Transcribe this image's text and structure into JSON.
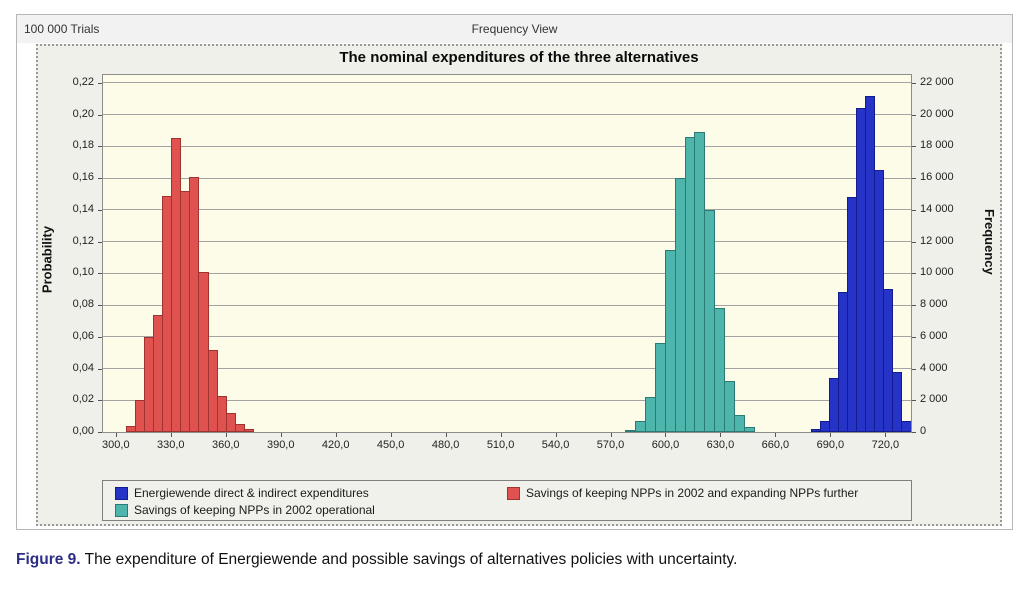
{
  "header": {
    "trials": "100 000 Trials",
    "view": "Frequency View"
  },
  "chart_data": {
    "type": "bar",
    "title": "The nominal expenditures of the three alternatives",
    "ylabel_left": "Probability",
    "ylabel_right": "Frequency",
    "x_domain": [
      293,
      734
    ],
    "y_domain_probability": [
      0,
      0.225
    ],
    "y_domain_frequency": [
      0,
      22500
    ],
    "grid": true,
    "legend_position": "bottom",
    "x_tick_values": [
      300,
      330,
      360,
      390,
      420,
      450,
      480,
      510,
      540,
      570,
      600,
      630,
      660,
      690,
      720
    ],
    "x_tick_labels": [
      "300,0",
      "330,0",
      "360,0",
      "390,0",
      "420,0",
      "450,0",
      "480,0",
      "510,0",
      "540,0",
      "570,0",
      "600,0",
      "630,0",
      "660,0",
      "690,0",
      "720,0"
    ],
    "y_left_tick_values": [
      0,
      0.02,
      0.04,
      0.06,
      0.08,
      0.1,
      0.12,
      0.14,
      0.16,
      0.18,
      0.2,
      0.22
    ],
    "y_left_tick_labels": [
      "0,00",
      "0,02",
      "0,04",
      "0,06",
      "0,08",
      "0,10",
      "0,12",
      "0,14",
      "0,16",
      "0,18",
      "0,20",
      "0,22"
    ],
    "y_right_tick_values": [
      0,
      2000,
      4000,
      6000,
      8000,
      10000,
      12000,
      14000,
      16000,
      18000,
      20000,
      22000
    ],
    "y_right_tick_labels": [
      "0",
      "2 000",
      "4 000",
      "6 000",
      "8 000",
      "10 000",
      "12 000",
      "14 000",
      "16 000",
      "18 000",
      "20 000",
      "22 000"
    ],
    "series": [
      {
        "name": "Savings of keeping NPPs in 2002 and expanding NPPs further",
        "color": "#e05250",
        "border_color": "#a03230",
        "bin_start": 305.5,
        "bin_width": 4.95,
        "values": [
          0.004,
          0.02,
          0.06,
          0.074,
          0.149,
          0.185,
          0.152,
          0.161,
          0.101,
          0.052,
          0.023,
          0.012,
          0.005,
          0.002
        ]
      },
      {
        "name": "Savings of keeping NPPs in 2002 operational",
        "color": "#4eb5ad",
        "border_color": "#2c7a74",
        "bin_start": 578.0,
        "bin_width": 5.4,
        "values": [
          0.001,
          0.007,
          0.022,
          0.056,
          0.115,
          0.16,
          0.186,
          0.189,
          0.14,
          0.078,
          0.032,
          0.011,
          0.003
        ]
      },
      {
        "name": "Energiewende direct & indirect expenditures",
        "color": "#2533c6",
        "border_color": "#121c8e",
        "bin_start": 679.3,
        "bin_width": 4.95,
        "values": [
          0.002,
          0.007,
          0.034,
          0.088,
          0.148,
          0.204,
          0.212,
          0.165,
          0.09,
          0.038,
          0.007
        ]
      }
    ]
  },
  "legend": {
    "items": [
      {
        "label": "Energiewende direct & indirect expenditures",
        "color": "#2533c6",
        "border_color": "#121c8e"
      },
      {
        "label": "Savings of keeping NPPs in 2002 and expanding NPPs further",
        "color": "#e05250",
        "border_color": "#a03230"
      },
      {
        "label": "Savings of keeping NPPs in 2002 operational",
        "color": "#4eb5ad",
        "border_color": "#2c7a74"
      }
    ]
  },
  "caption": {
    "label": "Figure 9.",
    "text": "The expenditure of Energiewende and possible savings of alternatives policies with uncertainty.",
    "label_color": "#2d2e83"
  }
}
